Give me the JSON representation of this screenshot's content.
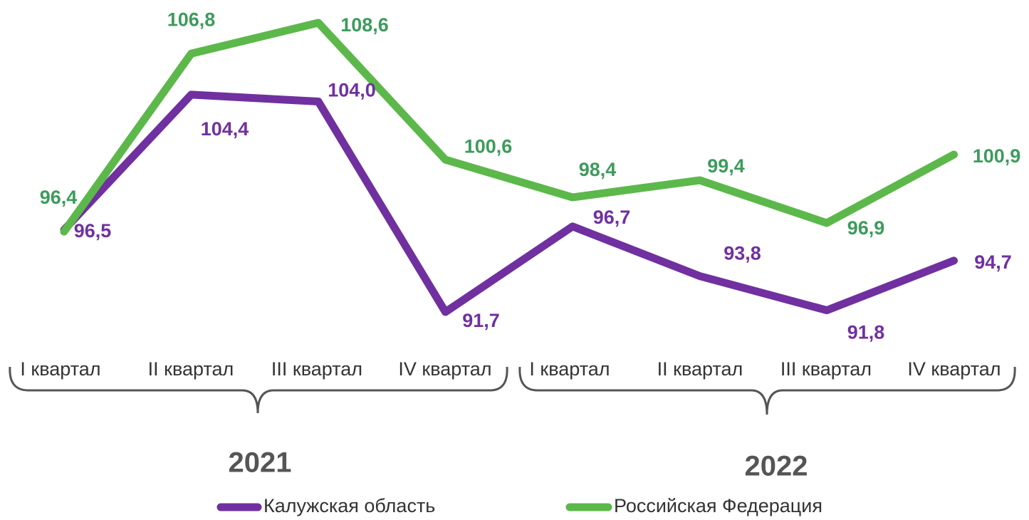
{
  "chart_data": {
    "type": "line",
    "categories": [
      "I квартал",
      "II квартал",
      "III квартал",
      "IV квартал",
      "I квартал",
      "II квартал",
      "III квартал",
      "IV квартал"
    ],
    "groups": [
      "2021",
      "2022"
    ],
    "series": [
      {
        "name": "Калужская область",
        "color": "#7030a0",
        "label_color": "#7030a0",
        "values": [
          96.5,
          104.4,
          104.0,
          91.7,
          96.7,
          93.8,
          91.8,
          94.7
        ],
        "value_labels": [
          "96,5",
          "104,4",
          "104,0",
          "91,7",
          "96,7",
          "93,8",
          "91,8",
          "94,7"
        ]
      },
      {
        "name": "Российская Федерация",
        "color": "#5cb84a",
        "label_color": "#3d9b5c",
        "values": [
          96.4,
          106.8,
          108.6,
          100.6,
          98.4,
          99.4,
          96.9,
          100.9
        ],
        "value_labels": [
          "96,4",
          "106,8",
          "108,6",
          "100,6",
          "98,4",
          "99,4",
          "96,9",
          "100,9"
        ]
      }
    ]
  }
}
